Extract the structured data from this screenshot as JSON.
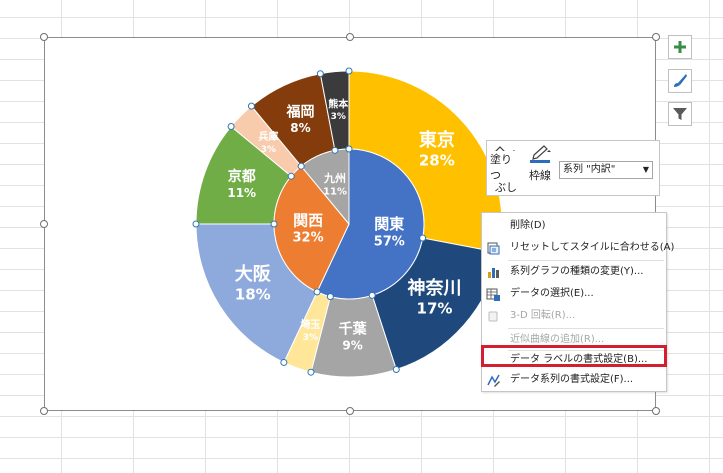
{
  "chart_data": {
    "type": "pie",
    "title": "",
    "outer_ring": [
      {
        "label": "東京",
        "percent": "28%",
        "value": 28,
        "color": "#FFC000"
      },
      {
        "label": "神奈川",
        "percent": "17%",
        "value": 17,
        "color": "#1F497D"
      },
      {
        "label": "千葉",
        "percent": "9%",
        "value": 9,
        "color": "#A5A5A5"
      },
      {
        "label": "埼玉",
        "percent": "3%",
        "value": 3,
        "color": "#FFE699"
      },
      {
        "label": "大阪",
        "percent": "18%",
        "value": 18,
        "color": "#8EA9DB"
      },
      {
        "label": "京都",
        "percent": "11%",
        "value": 11,
        "color": "#70AD47"
      },
      {
        "label": "兵庫",
        "percent": "3%",
        "value": 3,
        "color": "#F8CBAD"
      },
      {
        "label": "福岡",
        "percent": "8%",
        "value": 8,
        "color": "#843C0C"
      },
      {
        "label": "熊本",
        "percent": "3%",
        "value": 3,
        "color": "#3B3B3B"
      }
    ],
    "inner_pie": [
      {
        "label": "関東",
        "percent": "57%",
        "value": 57,
        "color": "#4472C4"
      },
      {
        "label": "関西",
        "percent": "32%",
        "value": 32,
        "color": "#ED7D31"
      },
      {
        "label": "九州",
        "percent": "11%",
        "value": 11,
        "color": "#A5A5A5"
      }
    ]
  },
  "side_buttons": [
    {
      "icon": "plus-icon",
      "label": "グラフ要素"
    },
    {
      "icon": "brush-icon",
      "label": "グラフ スタイル"
    },
    {
      "icon": "filter-icon",
      "label": "グラフ フィルター"
    }
  ],
  "mini_toolbar": {
    "fill_label_line1": "塗りつ",
    "fill_label_line2": "ぶし",
    "outline_label": "枠線",
    "series_select": "系列 \"内訳\""
  },
  "context_menu": {
    "items": [
      {
        "label": "削除(D)",
        "icon": "delete-icon",
        "enabled": true
      },
      {
        "label": "リセットしてスタイルに合わせる(A)",
        "icon": "reset-style-icon",
        "enabled": true
      },
      {
        "label": "系列グラフの種類の変更(Y)...",
        "icon": "chart-type-icon",
        "enabled": true
      },
      {
        "label": "データの選択(E)...",
        "icon": "select-data-icon",
        "enabled": true
      },
      {
        "label": "3-D 回転(R)...",
        "icon": "rotate-3d-icon",
        "enabled": false
      },
      {
        "label": "近似曲線の追加(R)...",
        "icon": "trendline-icon",
        "enabled": false
      },
      {
        "label": "データ ラベルの書式設定(B)...",
        "icon": "",
        "enabled": true
      },
      {
        "label": "データ系列の書式設定(F)...",
        "icon": "format-series-icon",
        "enabled": true
      }
    ],
    "highlight_color": "#D32030"
  }
}
